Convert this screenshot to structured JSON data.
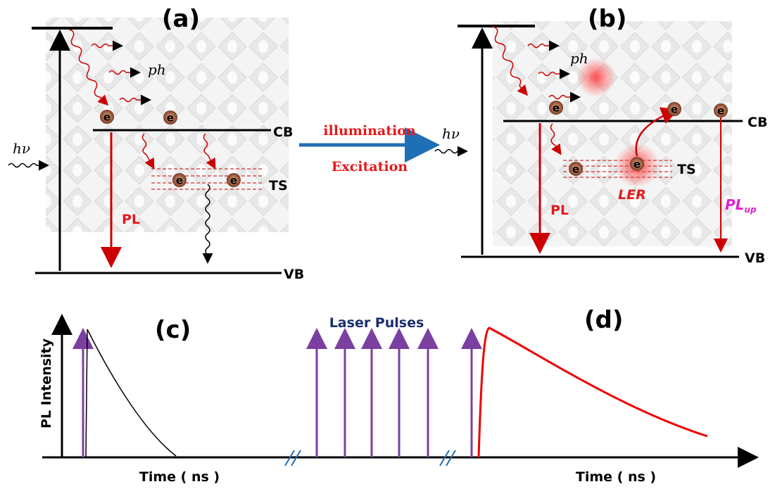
{
  "panel_a": {
    "label": "(a)",
    "ph": "ph",
    "hv": "hν",
    "cb": "CB",
    "vb": "VB",
    "ts": "TS",
    "pl": "PL",
    "electrons": [
      "e",
      "e",
      "e",
      "e"
    ]
  },
  "transition": {
    "top": "illumination",
    "bottom": "Excitation"
  },
  "panel_b": {
    "label": "(b)",
    "ph": "ph",
    "hv": "hν",
    "cb": "CB",
    "vb": "VB",
    "ts": "TS",
    "pl": "PL",
    "ler": "LER",
    "pl_up": {
      "main": "PL",
      "sub": "up"
    },
    "electrons": [
      "e",
      "e",
      "e",
      "e",
      "e"
    ]
  },
  "panel_c": {
    "label": "(c)",
    "y_label": "PL Intensity",
    "x_label": "Time ( ns )"
  },
  "panel_d": {
    "label": "(d)",
    "pulses_label": "Laser Pulses",
    "x_label": "Time ( ns )"
  }
}
